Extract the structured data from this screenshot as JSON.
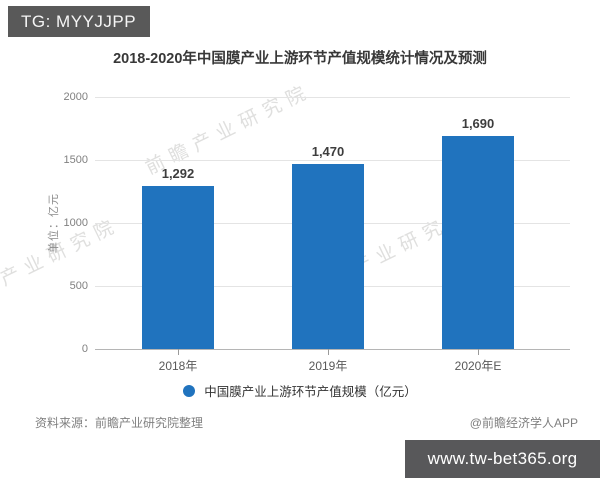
{
  "badge": {
    "label": "TG: MYYJJPP"
  },
  "chart_data": {
    "type": "bar",
    "title": "2018-2020年中国膜产业上游环节产值规模统计情况及预测",
    "categories": [
      "2018年",
      "2019年",
      "2020年E"
    ],
    "values": [
      1292,
      1470,
      1690
    ],
    "value_labels": [
      "1,292",
      "1,470",
      "1,690"
    ],
    "xlabel": "",
    "ylabel": "单位：亿元",
    "ylim": [
      0,
      2000
    ],
    "yticks": [
      0,
      500,
      1000,
      1500,
      2000
    ],
    "grid": true,
    "legend": [
      "中国膜产业上游环节产值规模（亿元）"
    ],
    "legend_position": "bottom",
    "bar_color": "#2073be"
  },
  "watermark": {
    "text": "前瞻产业研究院"
  },
  "footer": {
    "source": "资料来源：前瞻产业研究院整理",
    "credit": "@前瞻经济学人APP"
  },
  "url_banner": {
    "text": "www.tw-bet365.org"
  }
}
